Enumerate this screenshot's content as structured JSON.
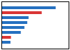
{
  "chart_data": {
    "type": "bar",
    "orientation": "horizontal",
    "categories": [
      null,
      null,
      null,
      null,
      null,
      null,
      null,
      null
    ],
    "values": [
      21.0,
      15.6,
      10.5,
      10.0,
      8.9,
      7.5,
      3.7,
      3.5
    ],
    "colors": [
      "#2570c0",
      "#d93535",
      "#2570c0",
      "#2570c0",
      "#2570c0",
      "#2570c0",
      "#d93535",
      "#2570c0"
    ],
    "xlim": [
      0,
      26.0
    ],
    "tick_labels": false
  }
}
